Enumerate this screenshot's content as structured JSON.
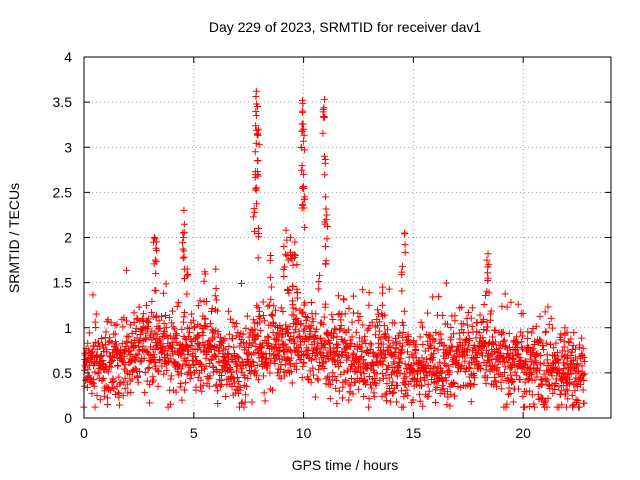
{
  "chart_data": {
    "type": "scatter",
    "title": "Day 229 of 2023, SRMTID for receiver dav1",
    "xlabel": "GPS time / hours",
    "ylabel": "SRMTID / TECUs",
    "xlim": [
      0,
      24
    ],
    "ylim": [
      0,
      4
    ],
    "x_ticks": [
      0,
      5,
      10,
      15,
      20
    ],
    "y_ticks": [
      0,
      0.5,
      1,
      1.5,
      2,
      2.5,
      3,
      3.5,
      4
    ],
    "x_tick_labels": [
      "0",
      "5",
      "10",
      "15",
      "20"
    ],
    "y_tick_labels": [
      "0",
      "0.5",
      "1",
      "1.5",
      "2",
      "2.5",
      "3",
      "3.5",
      "4"
    ],
    "grid": true,
    "marker": "+",
    "color": "#ff0000",
    "series": [
      {
        "name": "SRMTID",
        "generator": "dense per-satellite-pass samples from 0 to 22.8 h; typical level 0.3-1.3 TECU",
        "x_range": [
          0.0,
          22.8
        ],
        "n_points": 2200,
        "baseline": [
          [
            0,
            0.55
          ],
          [
            1,
            0.55
          ],
          [
            2,
            0.7
          ],
          [
            3,
            0.75
          ],
          [
            4,
            0.75
          ],
          [
            5,
            0.75
          ],
          [
            6,
            0.7
          ],
          [
            7,
            0.55
          ],
          [
            8,
            0.75
          ],
          [
            9,
            0.85
          ],
          [
            10,
            0.85
          ],
          [
            11,
            0.8
          ],
          [
            12,
            0.7
          ],
          [
            13,
            0.65
          ],
          [
            14,
            0.65
          ],
          [
            15,
            0.6
          ],
          [
            16,
            0.6
          ],
          [
            17,
            0.65
          ],
          [
            18,
            0.7
          ],
          [
            19,
            0.65
          ],
          [
            20,
            0.55
          ],
          [
            21,
            0.5
          ],
          [
            22,
            0.45
          ],
          [
            22.8,
            0.4
          ]
        ],
        "peaks": [
          {
            "x": 7.85,
            "y": 3.62
          },
          {
            "x": 7.9,
            "y": 3.45
          },
          {
            "x": 7.85,
            "y": 3.35
          },
          {
            "x": 7.95,
            "y": 3.2
          },
          {
            "x": 7.8,
            "y": 2.95
          },
          {
            "x": 7.9,
            "y": 2.85
          },
          {
            "x": 7.85,
            "y": 2.55
          },
          {
            "x": 7.75,
            "y": 2.32
          },
          {
            "x": 7.95,
            "y": 2.1
          },
          {
            "x": 9.95,
            "y": 3.52
          },
          {
            "x": 9.95,
            "y": 3.4
          },
          {
            "x": 10.0,
            "y": 3.2
          },
          {
            "x": 9.9,
            "y": 3.0
          },
          {
            "x": 10.0,
            "y": 2.7
          },
          {
            "x": 9.95,
            "y": 2.55
          },
          {
            "x": 10.05,
            "y": 2.45
          },
          {
            "x": 10.95,
            "y": 3.53
          },
          {
            "x": 10.9,
            "y": 3.42
          },
          {
            "x": 10.95,
            "y": 2.9
          },
          {
            "x": 11.0,
            "y": 2.45
          },
          {
            "x": 11.05,
            "y": 2.25
          },
          {
            "x": 11.0,
            "y": 1.9
          },
          {
            "x": 4.55,
            "y": 2.3
          },
          {
            "x": 4.5,
            "y": 2.05
          },
          {
            "x": 4.55,
            "y": 1.85
          },
          {
            "x": 3.2,
            "y": 2.0
          },
          {
            "x": 3.3,
            "y": 1.95
          },
          {
            "x": 3.25,
            "y": 1.75
          },
          {
            "x": 14.6,
            "y": 2.05
          },
          {
            "x": 14.5,
            "y": 1.68
          },
          {
            "x": 18.4,
            "y": 1.82
          },
          {
            "x": 18.35,
            "y": 1.75
          },
          {
            "x": 9.2,
            "y": 2.08
          },
          {
            "x": 9.4,
            "y": 2.0
          },
          {
            "x": 9.6,
            "y": 1.95
          },
          {
            "x": 9.1,
            "y": 1.9
          },
          {
            "x": 9.5,
            "y": 1.8
          },
          {
            "x": 9.3,
            "y": 1.75
          },
          {
            "x": 9.7,
            "y": 1.7
          },
          {
            "x": 8.5,
            "y": 1.8
          },
          {
            "x": 6.0,
            "y": 1.65
          },
          {
            "x": 5.5,
            "y": 1.62
          },
          {
            "x": 4.7,
            "y": 1.65
          },
          {
            "x": 13.6,
            "y": 1.45
          },
          {
            "x": 21.9,
            "y": 1.0
          },
          {
            "x": 22.0,
            "y": 0.95
          }
        ]
      }
    ]
  }
}
